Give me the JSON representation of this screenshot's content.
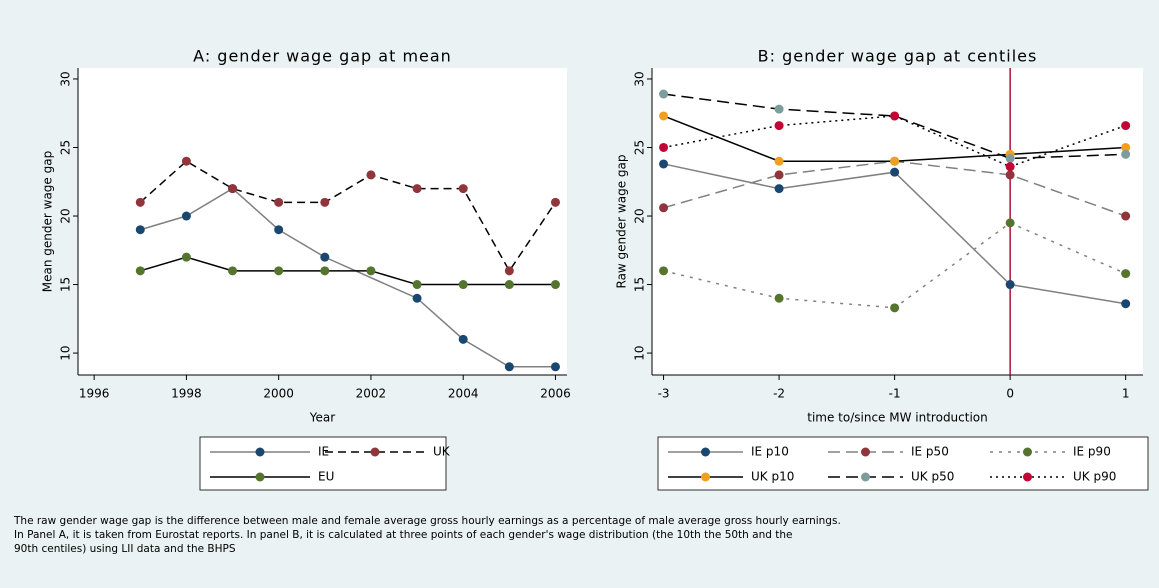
{
  "chart_data": [
    {
      "type": "line",
      "title": "A: gender wage gap at mean",
      "xlabel": "Year",
      "ylabel": "Mean gender wage gap",
      "xlim": [
        1995.65,
        2006.25
      ],
      "xticks": [
        1996,
        1998,
        2000,
        2002,
        2004,
        2006
      ],
      "ylim": [
        8.4,
        30.8
      ],
      "yticks": [
        10,
        15,
        20,
        25,
        30
      ],
      "series": [
        {
          "name": "IE",
          "color": "#1a476f",
          "line_color": "#808080",
          "line_style": "solid",
          "x": [
            1997,
            1998,
            1999,
            2000,
            2001,
            2003,
            2004,
            2005,
            2006
          ],
          "values": [
            19,
            20,
            22,
            19,
            17,
            14,
            11,
            9,
            9
          ]
        },
        {
          "name": "UK",
          "color": "#90353b",
          "line_color": "#000000",
          "line_style": "dash",
          "x": [
            1997,
            1998,
            1999,
            2000,
            2001,
            2002,
            2003,
            2004,
            2005,
            2006
          ],
          "values": [
            21,
            24,
            22,
            21,
            21,
            23,
            22,
            22,
            16,
            21
          ]
        },
        {
          "name": "EU",
          "color": "#55752f",
          "line_color": "#000000",
          "line_style": "solid",
          "x": [
            1997,
            1998,
            1999,
            2000,
            2001,
            2002,
            2003,
            2004,
            2005,
            2006
          ],
          "values": [
            16,
            17,
            16,
            16,
            16,
            16,
            15,
            15,
            15,
            15
          ]
        }
      ]
    },
    {
      "type": "line",
      "title": "B: gender wage gap at centiles",
      "xlabel": "time to/since MW introduction",
      "ylabel": "Raw gender wage gap",
      "xlim": [
        -3.1,
        1.15
      ],
      "xticks": [
        -3,
        -2,
        -1,
        0,
        1
      ],
      "ylim": [
        8.4,
        30.8
      ],
      "yticks": [
        10,
        15,
        20,
        25,
        30
      ],
      "vline": {
        "value": 0,
        "color": "#b0103a"
      },
      "series": [
        {
          "name": "IE p10",
          "color": "#1a476f",
          "line_color": "#808080",
          "line_style": "solid",
          "x": [
            -3,
            -2,
            -1,
            0,
            1
          ],
          "values": [
            23.8,
            22,
            23.2,
            15,
            13.6
          ]
        },
        {
          "name": "IE p50",
          "color": "#90353b",
          "line_color": "#808080",
          "line_style": "longdash",
          "x": [
            -3,
            -2,
            -1,
            0,
            1
          ],
          "values": [
            20.6,
            23,
            24,
            23,
            20
          ]
        },
        {
          "name": "IE p90",
          "color": "#55752f",
          "line_color": "#808080",
          "line_style": "shortdash",
          "x": [
            -3,
            -2,
            -1,
            0,
            1
          ],
          "values": [
            16,
            14,
            13.3,
            19.5,
            15.8
          ]
        },
        {
          "name": "UK p10",
          "color": "#f0a01e",
          "line_color": "#000000",
          "line_style": "solid",
          "x": [
            -3,
            -2,
            -1,
            0,
            1
          ],
          "values": [
            27.3,
            24,
            24,
            24.5,
            25
          ]
        },
        {
          "name": "UK p50",
          "color": "#7d9c9c",
          "line_color": "#000000",
          "line_style": "longdash",
          "x": [
            -3,
            -2,
            -1,
            0,
            1
          ],
          "values": [
            28.9,
            27.8,
            27.3,
            24.2,
            24.5
          ]
        },
        {
          "name": "UK p90",
          "color": "#c10534",
          "line_color": "#000000",
          "line_style": "dot",
          "x": [
            -3,
            -2,
            -1,
            0,
            1
          ],
          "values": [
            25,
            26.6,
            27.3,
            23.6,
            26.6
          ]
        }
      ]
    }
  ],
  "note": [
    "The raw gender wage gap is the difference between male and female average gross hourly earnings as a percentage of male average gross hourly earnings.",
    "In Panel A, it is taken from Eurostat reports. In panel B, it is calculated at three points of each gender's wage distribution (the 10th the 50th and the",
    "90th centiles) using LII data and the BHPS"
  ]
}
